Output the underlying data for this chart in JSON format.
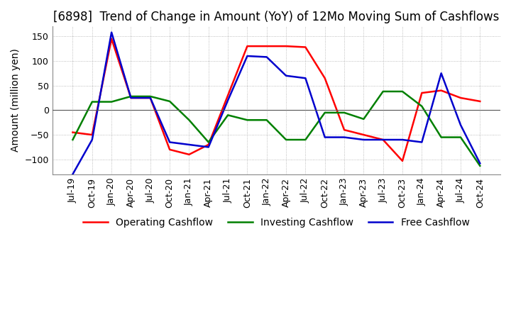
{
  "title": "[6898]  Trend of Change in Amount (YoY) of 12Mo Moving Sum of Cashflows",
  "ylabel": "Amount (million yen)",
  "ylim": [
    -130,
    170
  ],
  "yticks": [
    -100,
    -50,
    0,
    50,
    100,
    150
  ],
  "x_labels": [
    "Jul-19",
    "Oct-19",
    "Jan-20",
    "Apr-20",
    "Jul-20",
    "Oct-20",
    "Jan-21",
    "Apr-21",
    "Jul-21",
    "Oct-21",
    "Jan-22",
    "Apr-22",
    "Jul-22",
    "Oct-22",
    "Jan-23",
    "Apr-23",
    "Jul-23",
    "Oct-23",
    "Jan-24",
    "Apr-24",
    "Jul-24",
    "Oct-24"
  ],
  "operating": [
    -45,
    -50,
    145,
    25,
    25,
    -80,
    -90,
    -70,
    30,
    130,
    130,
    130,
    128,
    65,
    -40,
    -50,
    -60,
    -103,
    35,
    40,
    25,
    18
  ],
  "investing": [
    -60,
    17,
    17,
    28,
    28,
    18,
    -20,
    -65,
    -10,
    -20,
    -20,
    -60,
    -60,
    -5,
    -5,
    -18,
    38,
    38,
    8,
    -55,
    -55,
    -113
  ],
  "free": [
    -130,
    -60,
    158,
    25,
    25,
    -65,
    -70,
    -75,
    20,
    110,
    108,
    70,
    65,
    -55,
    -55,
    -60,
    -60,
    -60,
    -65,
    75,
    -30,
    -108
  ],
  "op_color": "#ff0000",
  "inv_color": "#008000",
  "free_color": "#0000cd",
  "bg_color": "#ffffff",
  "grid_color": "#aaaaaa",
  "title_fontsize": 12,
  "label_fontsize": 10,
  "tick_fontsize": 9,
  "legend_fontsize": 10,
  "linewidth": 1.8
}
